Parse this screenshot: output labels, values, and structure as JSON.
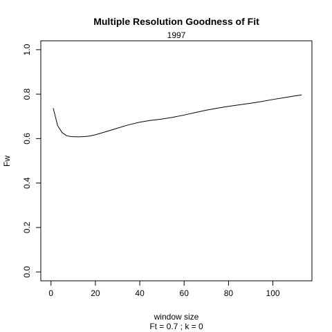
{
  "chart_data": {
    "type": "line",
    "title": "Multiple Resolution Goodness of Fit",
    "subtitle": "1997",
    "xlabel": "window size",
    "ylabel": "Fw",
    "footnote": "Ft = 0.7 ; k =  0",
    "xlim": [
      -4.6,
      117.6
    ],
    "ylim": [
      -0.04,
      1.04
    ],
    "x_ticks": [
      0,
      20,
      40,
      60,
      80,
      100
    ],
    "x_tick_labels": [
      "0",
      "20",
      "40",
      "60",
      "80",
      "100"
    ],
    "y_ticks": [
      0.0,
      0.2,
      0.4,
      0.6,
      0.8,
      1.0
    ],
    "y_tick_labels": [
      "0.0",
      "0.2",
      "0.4",
      "0.6",
      "0.8",
      "1.0"
    ],
    "grid": false,
    "series": [
      {
        "x": [
          1,
          3,
          5,
          7,
          9,
          11,
          13,
          15,
          17,
          20,
          25,
          30,
          35,
          40,
          45,
          50,
          55,
          60,
          65,
          70,
          75,
          80,
          85,
          90,
          95,
          100,
          105,
          110,
          113
        ],
        "values": [
          0.737,
          0.658,
          0.627,
          0.613,
          0.609,
          0.608,
          0.608,
          0.609,
          0.611,
          0.617,
          0.632,
          0.647,
          0.662,
          0.674,
          0.682,
          0.688,
          0.696,
          0.706,
          0.717,
          0.728,
          0.737,
          0.745,
          0.752,
          0.759,
          0.767,
          0.776,
          0.784,
          0.792,
          0.797
        ]
      }
    ]
  }
}
